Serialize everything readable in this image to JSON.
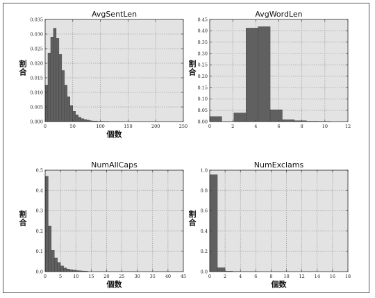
{
  "figure": {
    "background": "#ffffff",
    "panel_background": "#e3e3e3",
    "bar_color": "#606060",
    "bar_edge": "#3a3a3a",
    "grid": true
  },
  "chart_data": [
    {
      "type": "bar",
      "title": "AvgSentLen",
      "xlabel": "個数",
      "ylabel": "割合",
      "xlim": [
        0,
        250
      ],
      "ylim": [
        0,
        0.035
      ],
      "xticks": [
        0,
        50,
        100,
        150,
        200,
        250
      ],
      "yticks": [
        0.0,
        0.005,
        0.01,
        0.015,
        0.02,
        0.025,
        0.03,
        0.035
      ],
      "ytick_labels": [
        "0.000",
        "0.005",
        "0.010",
        "0.015",
        "0.020",
        "0.025",
        "0.030",
        "0.035"
      ],
      "xtick_labels": [
        "0",
        "50",
        "100",
        "150",
        "200",
        "250"
      ],
      "bin_width": 5,
      "bins_start": [
        0,
        5,
        10,
        15,
        20,
        25,
        30,
        35,
        40,
        45,
        50,
        55,
        60,
        65,
        70,
        75,
        80,
        85,
        90,
        95,
        100,
        105,
        110
      ],
      "values": [
        0.0125,
        0.0235,
        0.029,
        0.032,
        0.0285,
        0.023,
        0.0175,
        0.0125,
        0.0085,
        0.0055,
        0.0035,
        0.0023,
        0.0015,
        0.001,
        0.0007,
        0.0005,
        0.0003,
        0.0002,
        0.0002,
        0.0001,
        0.0001,
        5e-05,
        5e-05
      ]
    },
    {
      "type": "bar",
      "title": "AvgWordLen",
      "xlabel": "",
      "ylabel": "割合",
      "xlim": [
        0,
        12
      ],
      "ylim": [
        0,
        0.45
      ],
      "xticks": [
        0,
        2,
        4,
        6,
        8,
        10,
        12
      ],
      "xtick_labels": [
        "0",
        "2",
        "4",
        "6",
        "8",
        "10",
        "12"
      ],
      "yticks": [
        0.0,
        0.05,
        0.1,
        0.15,
        0.2,
        0.25,
        0.3,
        0.35,
        0.4,
        0.45
      ],
      "ytick_labels": [
        "0.00",
        "0.05",
        "0.10",
        "0.15",
        "0.20",
        "0.25",
        "0.30",
        "0.35",
        "0.40",
        "0.45"
      ],
      "bin_width": 1.05,
      "bins_start": [
        0,
        1.05,
        2.1,
        3.15,
        4.2,
        5.25,
        6.3,
        7.35,
        8.4,
        9.45,
        10.5
      ],
      "values": [
        0.022,
        0.0,
        0.038,
        0.412,
        0.418,
        0.052,
        0.008,
        0.004,
        0.0015,
        0.001,
        0.0
      ]
    },
    {
      "type": "bar",
      "title": "NumAllCaps",
      "xlabel": "個数",
      "ylabel": "割合",
      "xlim": [
        0,
        45
      ],
      "ylim": [
        0,
        0.5
      ],
      "xticks": [
        0,
        5,
        10,
        15,
        20,
        25,
        30,
        35,
        40,
        45
      ],
      "xtick_labels": [
        "0",
        "5",
        "10",
        "15",
        "20",
        "25",
        "30",
        "35",
        "40",
        "45"
      ],
      "yticks": [
        0.0,
        0.1,
        0.2,
        0.3,
        0.4,
        0.5
      ],
      "ytick_labels": [
        "0.0",
        "0.1",
        "0.2",
        "0.3",
        "0.4",
        "0.5"
      ],
      "bin_width": 1,
      "bins_start": [
        0,
        1,
        2,
        3,
        4,
        5,
        6,
        7,
        8,
        9,
        10,
        11,
        12,
        13
      ],
      "values": [
        0.47,
        0.225,
        0.105,
        0.068,
        0.045,
        0.028,
        0.018,
        0.013,
        0.009,
        0.007,
        0.005,
        0.004,
        0.003,
        0.002
      ]
    },
    {
      "type": "bar",
      "title": "NumExclams",
      "xlabel": "個数",
      "ylabel": "割合",
      "xlim": [
        0,
        18
      ],
      "ylim": [
        0,
        1.0
      ],
      "xticks": [
        0,
        2,
        4,
        6,
        8,
        10,
        12,
        14,
        16,
        18
      ],
      "xtick_labels": [
        "0",
        "2",
        "4",
        "6",
        "8",
        "10",
        "12",
        "14",
        "16",
        "18"
      ],
      "yticks": [
        0.0,
        0.2,
        0.4,
        0.6,
        0.8,
        1.0
      ],
      "ytick_labels": [
        "0.0",
        "0.2",
        "0.4",
        "0.6",
        "0.8",
        "1.0"
      ],
      "bin_width": 1,
      "bins_start": [
        0,
        1,
        2,
        3
      ],
      "values": [
        0.955,
        0.038,
        0.004,
        0.001
      ]
    }
  ]
}
